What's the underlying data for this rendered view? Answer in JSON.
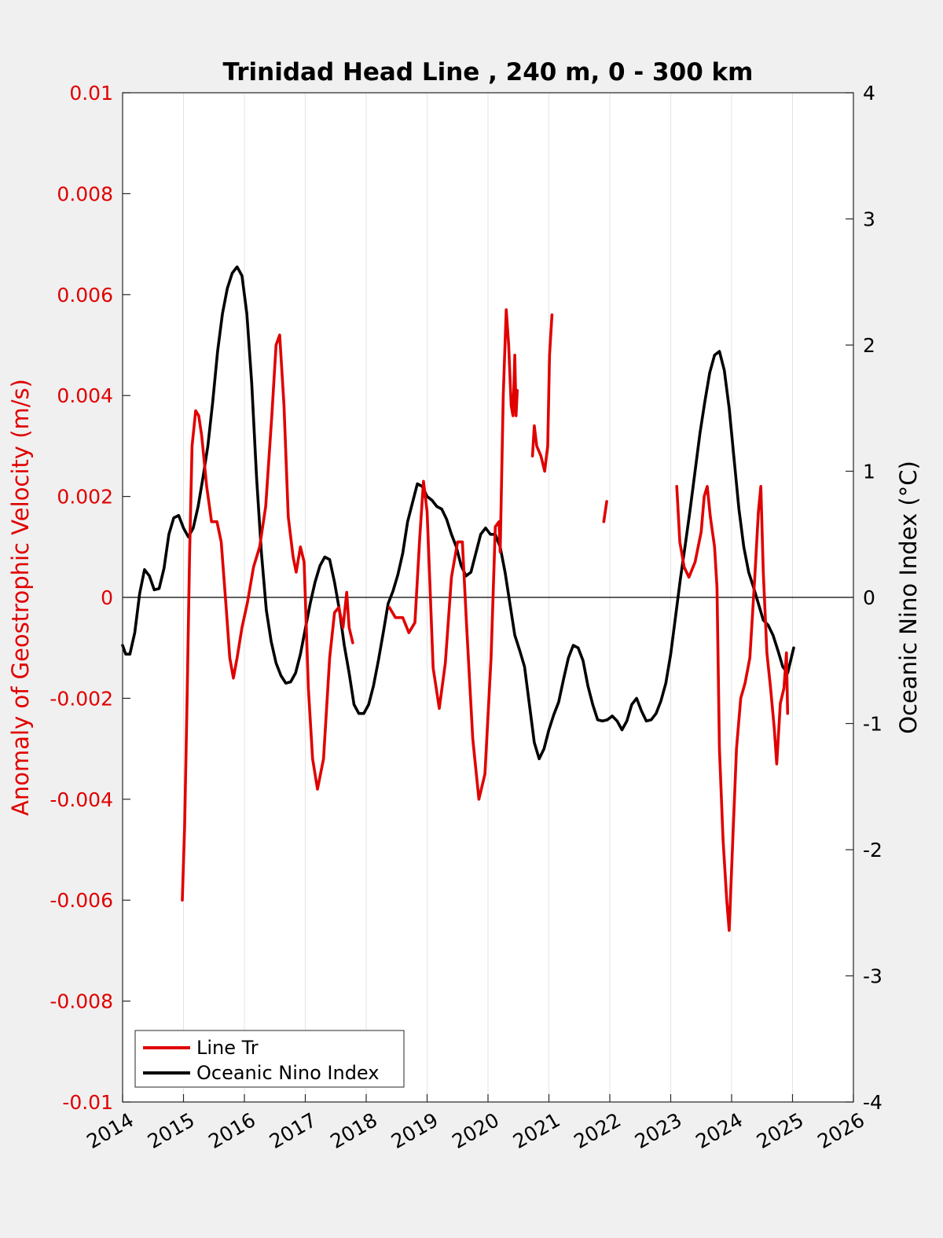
{
  "chart_data": {
    "type": "line",
    "title": "Trinidad Head Line , 240 m, 0 - 300 km",
    "ylabel_left": "Anomaly of Geostrophic Velocity (m/s)",
    "ylabel_right": "Oceanic Nino Index (°C)",
    "xlim": [
      2014,
      2026
    ],
    "ylim_left": [
      -0.01,
      0.01
    ],
    "ylim_right": [
      -4,
      4
    ],
    "x_ticks": [
      "2014",
      "2015",
      "2016",
      "2017",
      "2018",
      "2019",
      "2020",
      "2021",
      "2022",
      "2023",
      "2024",
      "2025",
      "2026"
    ],
    "y_left_ticks": [
      "0.01",
      "0.008",
      "0.006",
      "0.004",
      "0.002",
      "0",
      "-0.002",
      "-0.004",
      "-0.006",
      "-0.008",
      "-0.01"
    ],
    "y_right_ticks": [
      "4",
      "3",
      "2",
      "1",
      "0",
      "-1",
      "-2",
      "-3",
      "-4"
    ],
    "grid": "vertical",
    "legend_position": "bottom-left",
    "colors": {
      "line_tr": "#e00000",
      "oni": "#000000",
      "zero_line": "#000000"
    },
    "series": [
      {
        "name": "Line Tr",
        "axis": "left",
        "segments": [
          [
            [
              2014.98,
              -0.006
            ],
            [
              2015.02,
              -0.0045
            ],
            [
              2015.06,
              -0.002
            ],
            [
              2015.1,
              0.0008
            ],
            [
              2015.14,
              0.003
            ],
            [
              2015.2,
              0.0037
            ],
            [
              2015.25,
              0.0036
            ],
            [
              2015.3,
              0.0032
            ],
            [
              2015.38,
              0.0022
            ],
            [
              2015.46,
              0.0015
            ],
            [
              2015.55,
              0.0015
            ],
            [
              2015.62,
              0.0011
            ],
            [
              2015.7,
              -0.0002
            ],
            [
              2015.76,
              -0.0012
            ],
            [
              2015.82,
              -0.0016
            ],
            [
              2015.88,
              -0.0012
            ],
            [
              2015.96,
              -0.0006
            ],
            [
              2016.05,
              -0.0001
            ],
            [
              2016.15,
              0.0006
            ],
            [
              2016.25,
              0.001
            ],
            [
              2016.35,
              0.0018
            ],
            [
              2016.45,
              0.0036
            ],
            [
              2016.52,
              0.005
            ],
            [
              2016.58,
              0.0052
            ],
            [
              2016.65,
              0.0038
            ],
            [
              2016.72,
              0.0016
            ],
            [
              2016.8,
              0.0008
            ],
            [
              2016.85,
              0.0005
            ],
            [
              2016.92,
              0.001
            ],
            [
              2016.98,
              0.0007
            ],
            [
              2017.05,
              -0.0018
            ],
            [
              2017.12,
              -0.0032
            ],
            [
              2017.2,
              -0.0038
            ],
            [
              2017.3,
              -0.0032
            ],
            [
              2017.4,
              -0.0012
            ],
            [
              2017.48,
              -0.0003
            ],
            [
              2017.55,
              -0.0002
            ],
            [
              2017.62,
              -0.0006
            ],
            [
              2017.68,
              0.0001
            ],
            [
              2017.72,
              -0.0006
            ],
            [
              2017.78,
              -0.0009
            ]
          ],
          [
            [
              2018.38,
              -0.0002
            ],
            [
              2018.48,
              -0.0004
            ],
            [
              2018.6,
              -0.0004
            ],
            [
              2018.7,
              -0.0007
            ],
            [
              2018.8,
              -0.0005
            ],
            [
              2018.88,
              0.0012
            ],
            [
              2018.94,
              0.0023
            ],
            [
              2019.0,
              0.0017
            ],
            [
              2019.1,
              -0.0014
            ],
            [
              2019.2,
              -0.0022
            ],
            [
              2019.3,
              -0.0013
            ],
            [
              2019.4,
              0.0004
            ],
            [
              2019.5,
              0.0011
            ],
            [
              2019.58,
              0.0011
            ],
            [
              2019.65,
              -0.0006
            ],
            [
              2019.75,
              -0.0028
            ],
            [
              2019.85,
              -0.004
            ],
            [
              2019.95,
              -0.0035
            ],
            [
              2020.05,
              -0.0012
            ],
            [
              2020.12,
              0.0014
            ],
            [
              2020.18,
              0.0015
            ],
            [
              2020.2,
              0.0009
            ],
            [
              2020.25,
              0.004
            ],
            [
              2020.3,
              0.0057
            ],
            [
              2020.34,
              0.005
            ],
            [
              2020.38,
              0.0038
            ],
            [
              2020.41,
              0.0036
            ],
            [
              2020.44,
              0.0048
            ],
            [
              2020.46,
              0.0036
            ],
            [
              2020.48,
              0.0041
            ]
          ],
          [
            [
              2020.73,
              0.0028
            ],
            [
              2020.76,
              0.0034
            ],
            [
              2020.8,
              0.003
            ],
            [
              2020.87,
              0.0028
            ],
            [
              2020.93,
              0.0025
            ],
            [
              2020.98,
              0.003
            ],
            [
              2021.01,
              0.0048
            ],
            [
              2021.05,
              0.0056
            ]
          ],
          [
            [
              2021.9,
              0.0015
            ],
            [
              2021.95,
              0.0019
            ]
          ],
          [
            [
              2023.1,
              0.0022
            ],
            [
              2023.15,
              0.0011
            ],
            [
              2023.22,
              0.0006
            ],
            [
              2023.3,
              0.0004
            ],
            [
              2023.4,
              0.0007
            ],
            [
              2023.5,
              0.0013
            ],
            [
              2023.55,
              0.002
            ],
            [
              2023.6,
              0.0022
            ],
            [
              2023.65,
              0.0016
            ],
            [
              2023.72,
              0.001
            ],
            [
              2023.76,
              0.0002
            ],
            [
              2023.8,
              -0.003
            ],
            [
              2023.86,
              -0.0048
            ],
            [
              2023.92,
              -0.006
            ],
            [
              2023.96,
              -0.0066
            ],
            [
              2024.02,
              -0.0048
            ],
            [
              2024.08,
              -0.003
            ],
            [
              2024.15,
              -0.002
            ],
            [
              2024.22,
              -0.0017
            ],
            [
              2024.3,
              -0.0012
            ],
            [
              2024.38,
              0.0004
            ],
            [
              2024.44,
              0.0017
            ],
            [
              2024.48,
              0.0022
            ],
            [
              2024.52,
              0.0005
            ],
            [
              2024.58,
              -0.0011
            ],
            [
              2024.64,
              -0.0018
            ],
            [
              2024.7,
              -0.0026
            ],
            [
              2024.74,
              -0.0033
            ],
            [
              2024.8,
              -0.0021
            ],
            [
              2024.86,
              -0.0018
            ],
            [
              2024.9,
              -0.0011
            ],
            [
              2024.92,
              -0.0023
            ]
          ]
        ]
      },
      {
        "name": "Oceanic Nino Index",
        "axis": "right",
        "segments": [
          [
            [
              2014.0,
              -0.38
            ],
            [
              2014.05,
              -0.45
            ],
            [
              2014.12,
              -0.45
            ],
            [
              2014.2,
              -0.28
            ],
            [
              2014.28,
              0.03
            ],
            [
              2014.36,
              0.22
            ],
            [
              2014.44,
              0.17
            ],
            [
              2014.52,
              0.06
            ],
            [
              2014.6,
              0.07
            ],
            [
              2014.68,
              0.23
            ],
            [
              2014.76,
              0.5
            ],
            [
              2014.84,
              0.63
            ],
            [
              2014.92,
              0.65
            ],
            [
              2015.0,
              0.55
            ],
            [
              2015.08,
              0.48
            ],
            [
              2015.16,
              0.55
            ],
            [
              2015.24,
              0.72
            ],
            [
              2015.32,
              0.95
            ],
            [
              2015.4,
              1.2
            ],
            [
              2015.48,
              1.55
            ],
            [
              2015.56,
              1.95
            ],
            [
              2015.64,
              2.25
            ],
            [
              2015.72,
              2.45
            ],
            [
              2015.8,
              2.57
            ],
            [
              2015.88,
              2.62
            ],
            [
              2015.96,
              2.55
            ],
            [
              2016.04,
              2.25
            ],
            [
              2016.12,
              1.7
            ],
            [
              2016.2,
              0.95
            ],
            [
              2016.28,
              0.35
            ],
            [
              2016.36,
              -0.1
            ],
            [
              2016.44,
              -0.35
            ],
            [
              2016.52,
              -0.52
            ],
            [
              2016.6,
              -0.62
            ],
            [
              2016.68,
              -0.68
            ],
            [
              2016.76,
              -0.67
            ],
            [
              2016.84,
              -0.6
            ],
            [
              2016.92,
              -0.45
            ],
            [
              2017.0,
              -0.25
            ],
            [
              2017.08,
              -0.05
            ],
            [
              2017.16,
              0.12
            ],
            [
              2017.24,
              0.25
            ],
            [
              2017.32,
              0.32
            ],
            [
              2017.4,
              0.3
            ],
            [
              2017.48,
              0.12
            ],
            [
              2017.56,
              -0.1
            ],
            [
              2017.64,
              -0.38
            ],
            [
              2017.72,
              -0.6
            ],
            [
              2017.8,
              -0.85
            ],
            [
              2017.88,
              -0.92
            ],
            [
              2017.96,
              -0.92
            ],
            [
              2018.04,
              -0.85
            ],
            [
              2018.12,
              -0.7
            ],
            [
              2018.2,
              -0.5
            ],
            [
              2018.28,
              -0.28
            ],
            [
              2018.36,
              -0.05
            ],
            [
              2018.44,
              0.05
            ],
            [
              2018.52,
              0.18
            ],
            [
              2018.6,
              0.35
            ],
            [
              2018.68,
              0.6
            ],
            [
              2018.76,
              0.75
            ],
            [
              2018.84,
              0.9
            ],
            [
              2018.92,
              0.88
            ],
            [
              2019.0,
              0.8
            ],
            [
              2019.08,
              0.77
            ],
            [
              2019.16,
              0.72
            ],
            [
              2019.24,
              0.7
            ],
            [
              2019.32,
              0.62
            ],
            [
              2019.4,
              0.5
            ],
            [
              2019.48,
              0.4
            ],
            [
              2019.56,
              0.25
            ],
            [
              2019.64,
              0.17
            ],
            [
              2019.72,
              0.2
            ],
            [
              2019.8,
              0.35
            ],
            [
              2019.88,
              0.5
            ],
            [
              2019.96,
              0.55
            ],
            [
              2020.04,
              0.5
            ],
            [
              2020.12,
              0.5
            ],
            [
              2020.2,
              0.4
            ],
            [
              2020.28,
              0.2
            ],
            [
              2020.36,
              -0.05
            ],
            [
              2020.44,
              -0.3
            ],
            [
              2020.52,
              -0.42
            ],
            [
              2020.6,
              -0.55
            ],
            [
              2020.68,
              -0.85
            ],
            [
              2020.76,
              -1.15
            ],
            [
              2020.84,
              -1.28
            ],
            [
              2020.92,
              -1.2
            ],
            [
              2021.0,
              -1.05
            ],
            [
              2021.08,
              -0.93
            ],
            [
              2021.16,
              -0.83
            ],
            [
              2021.24,
              -0.65
            ],
            [
              2021.32,
              -0.48
            ],
            [
              2021.4,
              -0.38
            ],
            [
              2021.48,
              -0.4
            ],
            [
              2021.56,
              -0.5
            ],
            [
              2021.64,
              -0.7
            ],
            [
              2021.72,
              -0.85
            ],
            [
              2021.8,
              -0.97
            ],
            [
              2021.88,
              -0.98
            ],
            [
              2021.96,
              -0.97
            ],
            [
              2022.04,
              -0.94
            ],
            [
              2022.12,
              -0.98
            ],
            [
              2022.2,
              -1.05
            ],
            [
              2022.28,
              -0.98
            ],
            [
              2022.36,
              -0.85
            ],
            [
              2022.44,
              -0.8
            ],
            [
              2022.52,
              -0.9
            ],
            [
              2022.6,
              -0.98
            ],
            [
              2022.68,
              -0.97
            ],
            [
              2022.76,
              -0.92
            ],
            [
              2022.84,
              -0.82
            ],
            [
              2022.92,
              -0.68
            ],
            [
              2023.0,
              -0.45
            ],
            [
              2023.08,
              -0.15
            ],
            [
              2023.16,
              0.15
            ],
            [
              2023.24,
              0.42
            ],
            [
              2023.32,
              0.7
            ],
            [
              2023.4,
              1.0
            ],
            [
              2023.48,
              1.3
            ],
            [
              2023.56,
              1.55
            ],
            [
              2023.64,
              1.78
            ],
            [
              2023.72,
              1.92
            ],
            [
              2023.8,
              1.95
            ],
            [
              2023.88,
              1.8
            ],
            [
              2023.96,
              1.5
            ],
            [
              2024.04,
              1.1
            ],
            [
              2024.12,
              0.7
            ],
            [
              2024.2,
              0.4
            ],
            [
              2024.28,
              0.2
            ],
            [
              2024.36,
              0.08
            ],
            [
              2024.44,
              -0.05
            ],
            [
              2024.52,
              -0.18
            ],
            [
              2024.6,
              -0.22
            ],
            [
              2024.68,
              -0.3
            ],
            [
              2024.76,
              -0.42
            ],
            [
              2024.84,
              -0.55
            ],
            [
              2024.92,
              -0.6
            ],
            [
              2025.02,
              -0.4
            ]
          ]
        ]
      }
    ]
  }
}
